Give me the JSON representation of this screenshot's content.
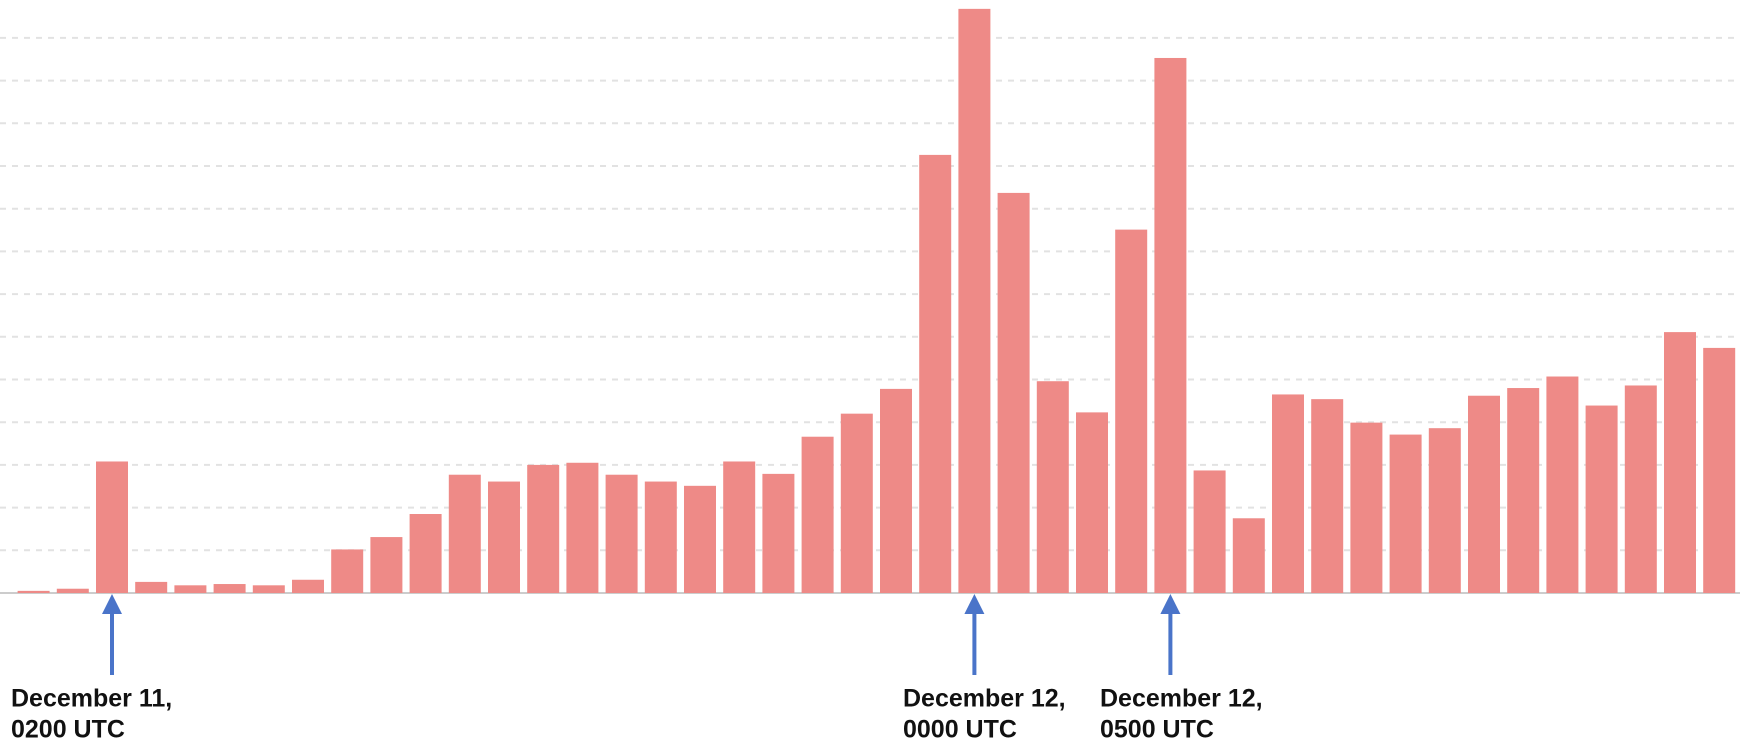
{
  "chart_data": {
    "type": "bar",
    "categories": [
      null,
      null,
      null,
      null,
      null,
      null,
      null,
      null,
      null,
      null,
      null,
      null,
      null,
      null,
      null,
      null,
      null,
      null,
      null,
      null,
      null,
      null,
      null,
      null,
      null,
      null,
      null,
      null,
      null,
      null,
      null,
      null,
      null,
      null,
      null,
      null,
      null,
      null,
      null,
      null,
      null,
      null,
      null,
      null
    ],
    "values": [
      0.05,
      0.1,
      3.08,
      0.26,
      0.18,
      0.21,
      0.18,
      0.31,
      1.02,
      1.31,
      1.85,
      2.77,
      2.61,
      3.0,
      3.05,
      2.77,
      2.61,
      2.51,
      3.08,
      2.79,
      3.66,
      4.2,
      4.78,
      10.26,
      13.68,
      9.37,
      4.96,
      4.23,
      8.51,
      12.53,
      2.87,
      1.75,
      4.65,
      4.54,
      3.99,
      3.71,
      3.86,
      4.62,
      4.8,
      5.07,
      4.39,
      4.86,
      6.11,
      5.74
    ],
    "color": "#ee8a87",
    "ylim": [
      0,
      14
    ],
    "yticks": [
      1,
      2,
      3,
      4,
      5,
      6,
      7,
      8,
      9,
      10,
      11,
      12,
      13
    ],
    "grid": true,
    "annotations": [
      {
        "text": [
          "December 11,",
          "0200 UTC"
        ],
        "color": "#4a74c9"
      },
      {
        "text": [
          "December 12,",
          "0000 UTC"
        ],
        "color": "#4a74c9"
      },
      {
        "text": [
          "December 12,",
          "0500 UTC"
        ],
        "color": "#4a74c9"
      }
    ]
  }
}
